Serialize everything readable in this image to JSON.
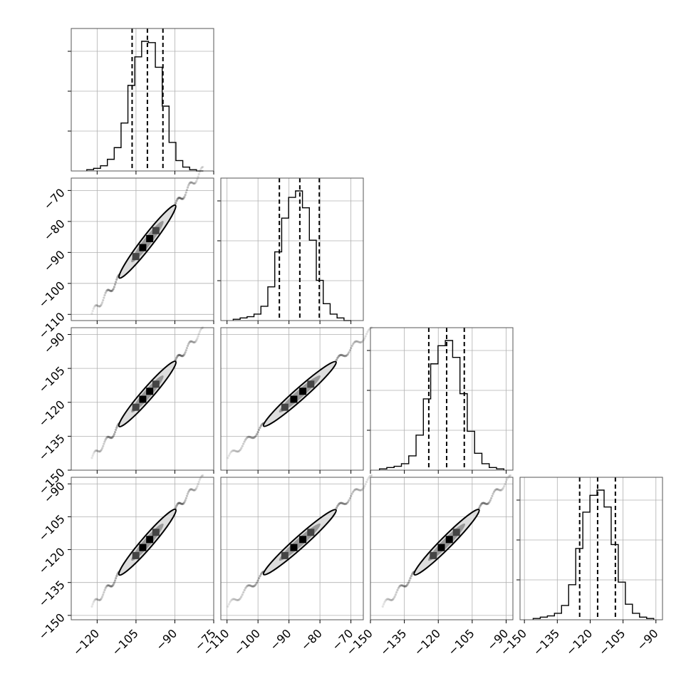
{
  "chart_data": {
    "type": "corner",
    "dimensions": 4,
    "ranges": [
      [
        -130,
        -75
      ],
      [
        -112,
        -66
      ],
      [
        -150,
        -87
      ],
      [
        -152,
        -87
      ]
    ],
    "ticks": [
      [
        -120,
        -105,
        -90,
        -75
      ],
      [
        -110,
        -100,
        -90,
        -80,
        -70
      ],
      [
        -150,
        -135,
        -120,
        -105,
        -90
      ],
      [
        -150,
        -135,
        -120,
        -105,
        -90
      ]
    ],
    "tick_labels": [
      [
        "−120",
        "−105",
        "−90",
        "−75"
      ],
      [
        "−110",
        "−100",
        "−90",
        "−80",
        "−70"
      ],
      [
        "−150",
        "−135",
        "−120",
        "−105",
        "−90"
      ],
      [
        "−150",
        "−135",
        "−120",
        "−105",
        "−90"
      ]
    ],
    "x_tick_labels_bottom": [
      [
        "−120",
        "−105",
        "−90",
        "−75"
      ],
      [
        "−110",
        "−100",
        "−90",
        "−80",
        "−70"
      ],
      [
        "−150",
        "−135",
        "−120",
        "−105",
        "−90"
      ],
      [
        "−150",
        "−135",
        "−120",
        "−105",
        "−90"
      ]
    ],
    "quantiles": [
      [
        -106.5,
        -100.6,
        -94.6
      ],
      [
        -93.1,
        -86.5,
        -80.2
      ],
      [
        -124.2,
        -116.3,
        -108.5
      ],
      [
        -124.8,
        -116.6,
        -108.5
      ]
    ],
    "histograms": [
      {
        "edges_range": [
          -124,
          -79
        ],
        "counts": [
          1,
          2,
          4,
          9,
          18,
          37,
          66,
          88,
          100,
          99,
          80,
          50,
          22,
          8,
          3,
          1,
          0
        ]
      },
      {
        "edges_range": [
          -108,
          -70
        ],
        "counts": [
          1,
          2,
          3,
          5,
          11,
          26,
          53,
          79,
          95,
          100,
          87,
          62,
          31,
          13,
          5,
          2,
          0
        ]
      },
      {
        "edges_range": [
          -146,
          -91
        ],
        "counts": [
          1,
          2,
          3,
          5,
          11,
          27,
          55,
          82,
          96,
          100,
          87,
          59,
          30,
          13,
          5,
          2,
          1
        ]
      },
      {
        "edges_range": [
          -146,
          -91
        ],
        "counts": [
          1,
          2,
          3,
          5,
          11,
          27,
          55,
          83,
          96,
          100,
          87,
          58,
          29,
          12,
          5,
          2,
          1
        ]
      }
    ],
    "grid": true,
    "xlabel": "",
    "ylabel": "",
    "title": ""
  }
}
